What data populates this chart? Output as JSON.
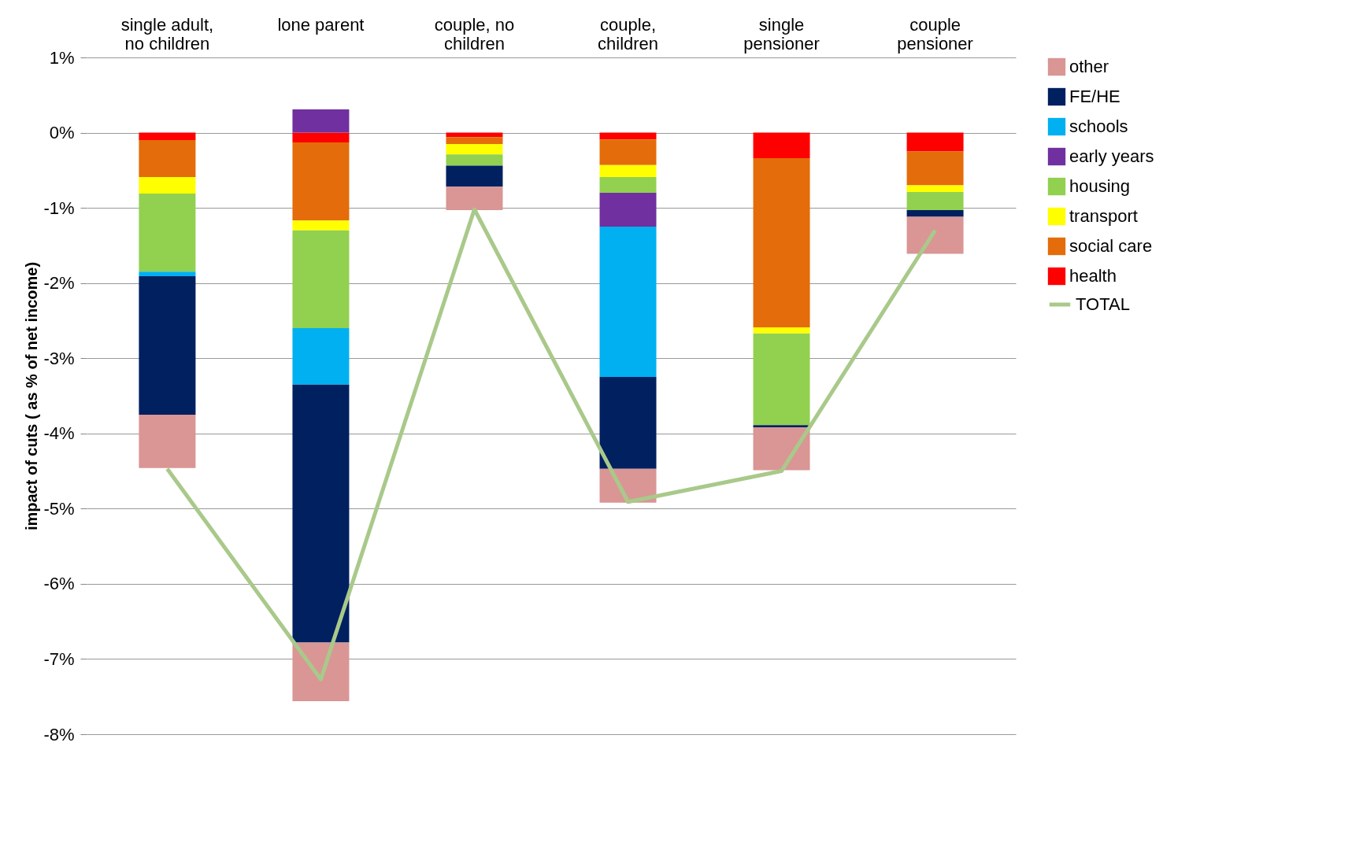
{
  "chart_data": {
    "type": "bar",
    "stacked": true,
    "ylabel": "impact of cuts ( as % of net income)",
    "categories": [
      "single adult, no children",
      "lone parent",
      "couple, no children",
      "couple, children",
      "single pensioner",
      "couple pensioner"
    ],
    "series": [
      {
        "name": "health",
        "color": "#ff0000",
        "values": [
          -0.1,
          -0.13,
          -0.06,
          -0.09,
          -0.34,
          -0.25
        ]
      },
      {
        "name": "social care",
        "color": "#e46c0a",
        "values": [
          -0.49,
          -1.04,
          -0.09,
          -0.34,
          -2.25,
          -0.45
        ]
      },
      {
        "name": "transport",
        "color": "#ffff00",
        "values": [
          -0.22,
          -0.13,
          -0.14,
          -0.16,
          -0.08,
          -0.09
        ]
      },
      {
        "name": "housing",
        "color": "#92d050",
        "values": [
          -1.04,
          -1.3,
          -0.15,
          -0.21,
          -1.22,
          -0.24
        ]
      },
      {
        "name": "early years",
        "color": "#7030a0",
        "values": [
          0,
          0.31,
          0,
          -0.45,
          0,
          0
        ]
      },
      {
        "name": "schools",
        "color": "#00b0f0",
        "values": [
          -0.06,
          -0.75,
          0,
          -2.0,
          0,
          0
        ]
      },
      {
        "name": "FE/HE",
        "color": "#002060",
        "values": [
          -1.84,
          -3.43,
          -0.28,
          -1.22,
          -0.03,
          -0.09
        ]
      },
      {
        "name": "other",
        "color": "#d99694",
        "values": [
          -0.71,
          -0.78,
          -0.31,
          -0.45,
          -0.57,
          -0.49
        ]
      },
      {
        "name": "TOTAL",
        "type": "line",
        "color": "#a9c98a",
        "values": [
          -4.47,
          -7.27,
          -1.02,
          -4.91,
          -4.5,
          -1.3
        ]
      }
    ],
    "ylim": [
      -8,
      1
    ],
    "yticks": [
      {
        "value": -8,
        "label": "-8%"
      },
      {
        "value": -7,
        "label": "-7%"
      },
      {
        "value": -6,
        "label": "-6%"
      },
      {
        "value": -5,
        "label": "-5%"
      },
      {
        "value": -4,
        "label": "-4%"
      },
      {
        "value": -3,
        "label": "-3%"
      },
      {
        "value": -2,
        "label": "-2%"
      },
      {
        "value": -1,
        "label": "-1%"
      },
      {
        "value": 0,
        "label": "0%"
      },
      {
        "value": 1,
        "label": "1%"
      }
    ],
    "grid": "y",
    "legend": "right"
  }
}
